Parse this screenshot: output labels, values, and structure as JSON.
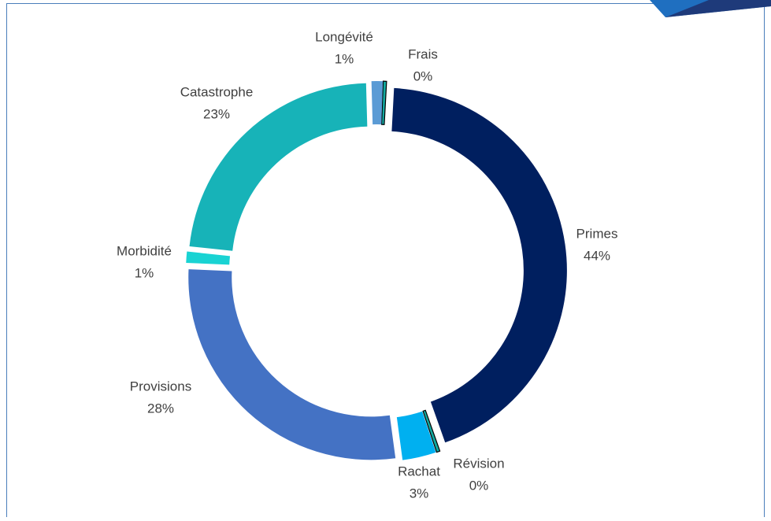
{
  "chart_data": {
    "type": "donut",
    "categories": [
      "Frais",
      "Primes",
      "Révision",
      "Rachat",
      "Provisions",
      "Morbidité",
      "Catastrophe",
      "Longévité"
    ],
    "values": [
      0.3,
      44,
      0.3,
      3,
      28,
      1,
      23,
      1
    ],
    "value_labels": [
      "0%",
      "44%",
      "0%",
      "3%",
      "28%",
      "1%",
      "23%",
      "1%"
    ],
    "colors": [
      "#13a89e",
      "#001f5f",
      "#13a89e",
      "#00b0f0",
      "#4472c4",
      "#19d3d3",
      "#17b3b8",
      "#5b9bd5"
    ]
  }
}
